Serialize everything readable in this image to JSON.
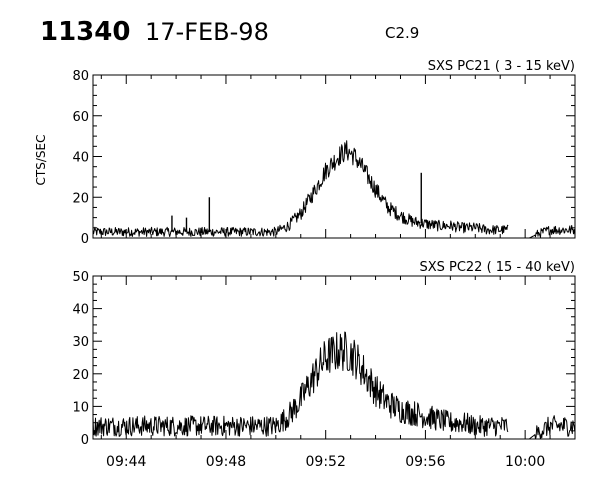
{
  "header": {
    "event_id": "11340",
    "date": "17-FEB-98",
    "goes_class": "C2.9"
  },
  "chart_data": [
    {
      "type": "line",
      "title": "SXS PC21  (  3 - 15 keV)",
      "ylabel": "CTS/SEC",
      "xlabel": "",
      "ylim": [
        0,
        80
      ],
      "yticks": [
        "0",
        "20",
        "40",
        "60",
        "80"
      ],
      "xlim": [
        "09:42:40",
        "10:02:00"
      ],
      "xticks": [
        "09:44",
        "09:48",
        "09:52",
        "09:56",
        "10:00"
      ],
      "color": "#000000",
      "series": [
        {
          "points": [
            [
              "09:42:40",
              3
            ],
            [
              "09:43:30",
              3
            ],
            [
              "09:44:00",
              3
            ],
            [
              "09:44:30",
              3
            ],
            [
              "09:45:00",
              3
            ],
            [
              "09:45:30",
              3
            ],
            [
              "09:46:00",
              3
            ],
            [
              "09:46:30",
              3
            ],
            [
              "09:47:00",
              3
            ],
            [
              "09:47:30",
              3
            ],
            [
              "09:48:00",
              3
            ],
            [
              "09:48:30",
              3
            ],
            [
              "09:49:00",
              3
            ],
            [
              "09:49:30",
              3
            ],
            [
              "09:50:00",
              3
            ],
            [
              "09:50:30",
              6
            ],
            [
              "09:51:00",
              12
            ],
            [
              "09:51:30",
              22
            ],
            [
              "09:52:00",
              33
            ],
            [
              "09:52:30",
              40
            ],
            [
              "09:52:50",
              43
            ],
            [
              "09:53:10",
              40
            ],
            [
              "09:53:30",
              34
            ],
            [
              "09:54:00",
              24
            ],
            [
              "09:54:30",
              15
            ],
            [
              "09:55:00",
              11
            ],
            [
              "09:55:30",
              8
            ],
            [
              "09:56:00",
              7
            ],
            [
              "09:56:30",
              6
            ],
            [
              "09:57:00",
              6
            ],
            [
              "09:57:30",
              5
            ],
            [
              "09:58:00",
              5
            ],
            [
              "09:58:30",
              4
            ],
            [
              "09:59:00",
              4
            ],
            [
              "09:59:20",
              4
            ]
          ],
          "spikes": [
            [
              "09:47:20",
              20
            ],
            [
              "09:45:50",
              11
            ],
            [
              "09:46:25",
              10
            ],
            [
              "09:55:50",
              32
            ]
          ]
        },
        {
          "points": [
            [
              "10:00:10",
              0
            ],
            [
              "10:00:30",
              2
            ],
            [
              "10:01:00",
              4
            ],
            [
              "10:01:30",
              4
            ],
            [
              "10:02:00",
              4
            ]
          ]
        }
      ]
    },
    {
      "type": "line",
      "title": "SXS PC22  ( 15 - 40 keV)",
      "ylabel": "",
      "xlabel": "",
      "ylim": [
        0,
        50
      ],
      "yticks": [
        "0",
        "10",
        "20",
        "30",
        "40",
        "50"
      ],
      "xlim": [
        "09:42:40",
        "10:02:00"
      ],
      "xticks": [
        "09:44",
        "09:48",
        "09:52",
        "09:56",
        "10:00"
      ],
      "color": "#000000",
      "series": [
        {
          "points": [
            [
              "09:42:40",
              4
            ],
            [
              "09:43:30",
              4
            ],
            [
              "09:44:00",
              4
            ],
            [
              "09:44:30",
              4
            ],
            [
              "09:45:00",
              4
            ],
            [
              "09:45:30",
              4
            ],
            [
              "09:46:00",
              4
            ],
            [
              "09:46:30",
              4
            ],
            [
              "09:47:00",
              4
            ],
            [
              "09:47:30",
              4
            ],
            [
              "09:48:00",
              4
            ],
            [
              "09:48:30",
              4
            ],
            [
              "09:49:00",
              4
            ],
            [
              "09:49:30",
              4
            ],
            [
              "09:50:00",
              4
            ],
            [
              "09:50:30",
              7
            ],
            [
              "09:51:00",
              12
            ],
            [
              "09:51:30",
              19
            ],
            [
              "09:52:00",
              25
            ],
            [
              "09:52:30",
              27
            ],
            [
              "09:52:50",
              27
            ],
            [
              "09:53:10",
              25
            ],
            [
              "09:53:30",
              21
            ],
            [
              "09:54:00",
              15
            ],
            [
              "09:54:30",
              11
            ],
            [
              "09:55:00",
              9
            ],
            [
              "09:55:30",
              8
            ],
            [
              "09:56:00",
              7
            ],
            [
              "09:56:30",
              6
            ],
            [
              "09:57:00",
              5
            ],
            [
              "09:57:30",
              5
            ],
            [
              "09:58:00",
              4
            ],
            [
              "09:58:30",
              4
            ],
            [
              "09:59:00",
              4
            ],
            [
              "09:59:20",
              4
            ]
          ],
          "spikes": []
        },
        {
          "points": [
            [
              "10:00:10",
              0
            ],
            [
              "10:00:30",
              2
            ],
            [
              "10:01:00",
              4
            ],
            [
              "10:01:30",
              4
            ],
            [
              "10:02:00",
              4
            ]
          ]
        }
      ]
    }
  ]
}
